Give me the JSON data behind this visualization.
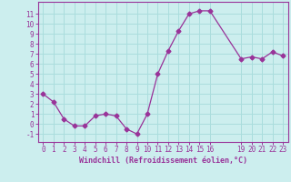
{
  "x": [
    0,
    1,
    2,
    3,
    4,
    5,
    6,
    7,
    8,
    9,
    10,
    11,
    12,
    13,
    14,
    15,
    16,
    19,
    20,
    21,
    22,
    23
  ],
  "y": [
    3.0,
    2.2,
    0.5,
    -0.2,
    -0.2,
    0.8,
    1.0,
    0.8,
    -0.5,
    -1.0,
    1.0,
    5.0,
    7.3,
    9.3,
    11.0,
    11.3,
    11.3,
    6.5,
    6.7,
    6.5,
    7.2,
    6.8
  ],
  "line_color": "#993399",
  "marker": "D",
  "marker_size": 2.5,
  "bg_color": "#cceeee",
  "grid_color": "#aadddd",
  "xlabel": "Windchill (Refroidissement éolien,°C)",
  "xlabel_color": "#993399",
  "xlim": [
    -0.5,
    23.5
  ],
  "ylim": [
    -1.8,
    12.2
  ],
  "xticks": [
    0,
    1,
    2,
    3,
    4,
    5,
    6,
    7,
    8,
    9,
    10,
    11,
    12,
    13,
    14,
    15,
    16,
    19,
    20,
    21,
    22,
    23
  ],
  "yticks": [
    -1,
    0,
    1,
    2,
    3,
    4,
    5,
    6,
    7,
    8,
    9,
    10,
    11
  ],
  "tick_color": "#993399",
  "spine_color": "#993399",
  "tick_fontsize": 5.5,
  "xlabel_fontsize": 6.0
}
